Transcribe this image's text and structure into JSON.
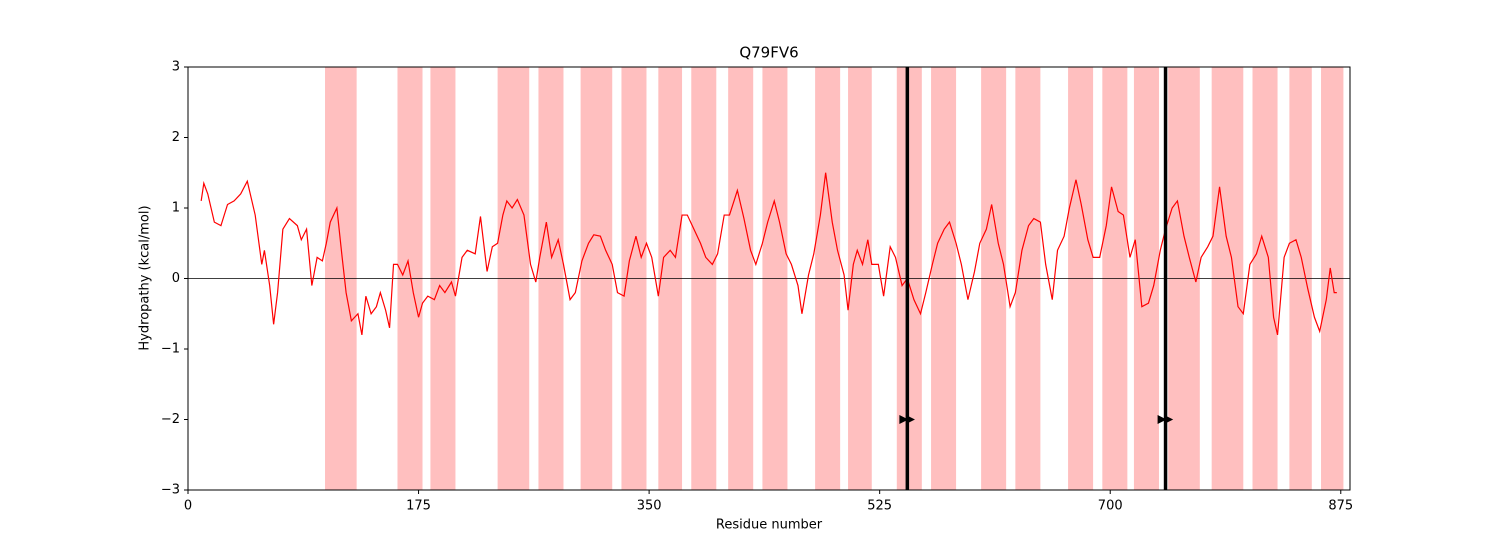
{
  "chart_data": {
    "type": "line",
    "title": "Q79FV6",
    "xlabel": "Residue number",
    "ylabel": "Hydropathy (kcal/mol)",
    "xlim": [
      0,
      882
    ],
    "ylim": [
      -3,
      3
    ],
    "xticks": [
      0,
      175,
      350,
      525,
      700,
      875
    ],
    "yticks": [
      -3,
      -2,
      -1,
      0,
      1,
      2,
      3
    ],
    "color": "red",
    "x": [
      10,
      12,
      15,
      20,
      25,
      30,
      35,
      40,
      45,
      51,
      56,
      58,
      62,
      65,
      68,
      72,
      77,
      83,
      86,
      90,
      94,
      98,
      102,
      105,
      108,
      113,
      117,
      120,
      124,
      129,
      132,
      135,
      139,
      143,
      146,
      150,
      153,
      156,
      159,
      163,
      167,
      171,
      175,
      178,
      182,
      187,
      191,
      195,
      200,
      203,
      208,
      212,
      218,
      222,
      227,
      231,
      235,
      239,
      242,
      246,
      250,
      255,
      260,
      264,
      267,
      272,
      276,
      281,
      285,
      290,
      294,
      299,
      304,
      308,
      313,
      317,
      322,
      326,
      331,
      335,
      340,
      344,
      348,
      352,
      357,
      361,
      366,
      370,
      375,
      379,
      384,
      389,
      393,
      398,
      402,
      407,
      411,
      417,
      422,
      427,
      431,
      436,
      440,
      445,
      449,
      454,
      458,
      463,
      466,
      471,
      475,
      480,
      484,
      489,
      493,
      498,
      501,
      505,
      508,
      512,
      516,
      519,
      524,
      528,
      533,
      537,
      542,
      546,
      551,
      556,
      560,
      565,
      569,
      574,
      578,
      583,
      587,
      592,
      597,
      601,
      606,
      610,
      615,
      619,
      624,
      628,
      633,
      638,
      642,
      647,
      651,
      656,
      660,
      665,
      669,
      674,
      678,
      683,
      687,
      692,
      697,
      701,
      706,
      710,
      715,
      719,
      724,
      729,
      733,
      738,
      742,
      747,
      751,
      756,
      760,
      765,
      769,
      774,
      778,
      783,
      788,
      792,
      797,
      801,
      806,
      811,
      815,
      820,
      824,
      827,
      832,
      836,
      841,
      845,
      850,
      855,
      859,
      864,
      867,
      870,
      872
    ],
    "values": [
      1.1,
      1.35,
      1.2,
      0.8,
      0.75,
      1.05,
      1.1,
      1.2,
      1.38,
      0.9,
      0.2,
      0.4,
      -0.1,
      -0.65,
      -0.2,
      0.7,
      0.85,
      0.75,
      0.55,
      0.7,
      -0.1,
      0.3,
      0.25,
      0.5,
      0.8,
      1.0,
      0.3,
      -0.2,
      -0.6,
      -0.5,
      -0.8,
      -0.25,
      -0.5,
      -0.4,
      -0.2,
      -0.45,
      -0.7,
      0.2,
      0.2,
      0.05,
      0.25,
      -0.2,
      -0.55,
      -0.35,
      -0.25,
      -0.3,
      -0.1,
      -0.2,
      -0.05,
      -0.25,
      0.3,
      0.4,
      0.35,
      0.88,
      0.1,
      0.45,
      0.5,
      0.9,
      1.1,
      1.0,
      1.12,
      0.9,
      0.2,
      -0.05,
      0.3,
      0.8,
      0.3,
      0.55,
      0.2,
      -0.3,
      -0.2,
      0.25,
      0.5,
      0.62,
      0.6,
      0.4,
      0.2,
      -0.2,
      -0.25,
      0.25,
      0.6,
      0.3,
      0.5,
      0.3,
      -0.25,
      0.3,
      0.4,
      0.3,
      0.9,
      0.9,
      0.7,
      0.5,
      0.3,
      0.2,
      0.35,
      0.9,
      0.9,
      1.25,
      0.85,
      0.4,
      0.2,
      0.5,
      0.8,
      1.1,
      0.8,
      0.35,
      0.2,
      -0.1,
      -0.5,
      0.05,
      0.35,
      0.9,
      1.5,
      0.8,
      0.4,
      0.05,
      -0.45,
      0.2,
      0.4,
      0.2,
      0.55,
      0.2,
      0.2,
      -0.25,
      0.45,
      0.3,
      -0.1,
      0.0,
      -0.3,
      -0.5,
      -0.2,
      0.2,
      0.5,
      0.7,
      0.8,
      0.5,
      0.2,
      -0.3,
      0.1,
      0.5,
      0.7,
      1.05,
      0.5,
      0.2,
      -0.4,
      -0.2,
      0.4,
      0.75,
      0.85,
      0.8,
      0.2,
      -0.3,
      0.4,
      0.6,
      1.0,
      1.4,
      1.05,
      0.55,
      0.3,
      0.3,
      0.75,
      1.3,
      0.95,
      0.9,
      0.3,
      0.55,
      -0.4,
      -0.35,
      -0.1,
      0.4,
      0.7,
      1.0,
      1.1,
      0.6,
      0.3,
      -0.05,
      0.3,
      0.45,
      0.6,
      1.3,
      0.6,
      0.3,
      -0.4,
      -0.5,
      0.2,
      0.35,
      0.6,
      0.3,
      -0.55,
      -0.8,
      0.3,
      0.5,
      0.55,
      0.3,
      -0.15,
      -0.55,
      -0.75,
      -0.3,
      0.15,
      -0.2,
      -0.2
    ],
    "hline": 0,
    "span_color": "#ffbfbf",
    "spans": [
      [
        104,
        128
      ],
      [
        159,
        178
      ],
      [
        184,
        203
      ],
      [
        235,
        259
      ],
      [
        266,
        285
      ],
      [
        298,
        322
      ],
      [
        329,
        348
      ],
      [
        357,
        375
      ],
      [
        382,
        401
      ],
      [
        410,
        429
      ],
      [
        436,
        455
      ],
      [
        476,
        495
      ],
      [
        501,
        519
      ],
      [
        538,
        557
      ],
      [
        564,
        583
      ],
      [
        602,
        621
      ],
      [
        628,
        647
      ],
      [
        668,
        687
      ],
      [
        694,
        713
      ],
      [
        718,
        737
      ],
      [
        744,
        768
      ],
      [
        777,
        801
      ],
      [
        808,
        827
      ],
      [
        836,
        853
      ],
      [
        860,
        877
      ]
    ],
    "vlines": [
      546,
      742
    ],
    "markers": {
      "x": [
        543,
        548,
        739,
        744
      ],
      "y": [
        -2,
        -2,
        -2,
        -2
      ]
    }
  }
}
